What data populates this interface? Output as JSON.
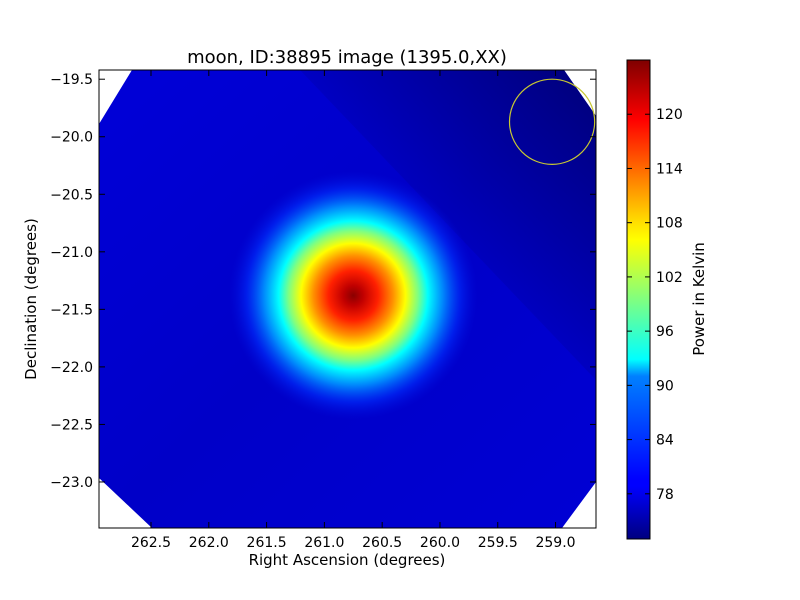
{
  "chart_data": {
    "type": "heatmap",
    "title": "moon, ID:38895 image (1395.0,XX)",
    "xlabel": "Right Ascension (degrees)",
    "ylabel": "Declination (degrees)",
    "colorbar_label": "Power in Kelvin",
    "xlim": [
      262.95,
      258.65
    ],
    "ylim": [
      -23.4,
      -19.42
    ],
    "xticks": [
      262.5,
      262.0,
      261.5,
      261.0,
      260.5,
      260.0,
      259.5,
      259.0
    ],
    "xtick_labels": [
      "262.5",
      "262.0",
      "261.5",
      "261.0",
      "260.5",
      "260.0",
      "259.5",
      "259.0"
    ],
    "yticks": [
      -19.5,
      -20.0,
      -20.5,
      -21.0,
      -21.5,
      -22.0,
      -22.5,
      -23.0
    ],
    "ytick_labels": [
      "−19.5",
      "−20.0",
      "−20.5",
      "−21.0",
      "−21.5",
      "−22.0",
      "−22.5",
      "−23.0"
    ],
    "colorbar_range": [
      73,
      126
    ],
    "colorbar_ticks": [
      78,
      84,
      90,
      96,
      102,
      108,
      114,
      120
    ],
    "colorbar_tick_labels": [
      "78",
      "84",
      "90",
      "96",
      "102",
      "108",
      "114",
      "120"
    ],
    "colormap": "jet",
    "source": {
      "ra": 260.75,
      "dec": -21.38,
      "peak_kelvin": 126,
      "sigma_deg": 0.36
    },
    "background_kelvin": 76,
    "beam_circle": {
      "ra": 259.03,
      "dec": -19.87,
      "radius_deg": 0.37,
      "color": "#c8c832"
    }
  }
}
